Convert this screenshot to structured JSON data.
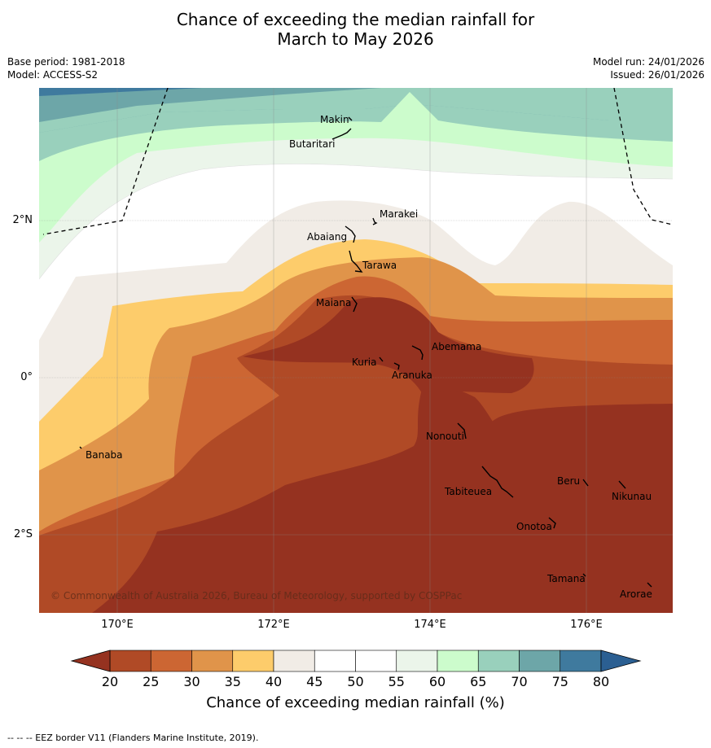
{
  "title": {
    "line1": "Chance of exceeding the median rainfall for",
    "line2": "March to May 2026"
  },
  "meta": {
    "base_period": "Base period: 1981-2018",
    "model": "Model: ACCESS-S2",
    "model_run": "Model run: 24/01/2026",
    "issued": "Issued: 26/01/2026"
  },
  "axes": {
    "lat_labels": [
      "2°N",
      "0°",
      "2°S"
    ],
    "lon_labels": [
      "170°E",
      "172°E",
      "174°E",
      "176°E"
    ]
  },
  "places": [
    {
      "name": "Makin"
    },
    {
      "name": "Butaritari"
    },
    {
      "name": "Marakei"
    },
    {
      "name": "Abaiang"
    },
    {
      "name": "Tarawa"
    },
    {
      "name": "Maiana"
    },
    {
      "name": "Abemama"
    },
    {
      "name": "Kuria"
    },
    {
      "name": "Aranuka"
    },
    {
      "name": "Banaba"
    },
    {
      "name": "Nonouti"
    },
    {
      "name": "Beru"
    },
    {
      "name": "Tabiteuea"
    },
    {
      "name": "Nikunau"
    },
    {
      "name": "Onotoa"
    },
    {
      "name": "Tamana"
    },
    {
      "name": "Arorae"
    }
  ],
  "copyright": "© Commonwealth of Australia 2026, Bureau of Meteorology, supported by COSPPac",
  "colorbar": {
    "ticks": [
      "20",
      "25",
      "30",
      "35",
      "40",
      "45",
      "50",
      "55",
      "60",
      "65",
      "70",
      "75",
      "80"
    ],
    "colors": [
      "#b04a26",
      "#cc6633",
      "#e0944a",
      "#fdcc6b",
      "#f1ece6",
      "#ffffff",
      "#ffffff",
      "#ebf5ea",
      "#ccfccc",
      "#99d0bc",
      "#6da6a8",
      "#3f7a9e"
    ],
    "under_color": "#953220",
    "over_color": "#2b5f92",
    "label": "Chance of exceeding median rainfall (%)"
  },
  "footer": "--  --  -- EEZ border V11 (Flanders Marine Institute, 2019)."
}
